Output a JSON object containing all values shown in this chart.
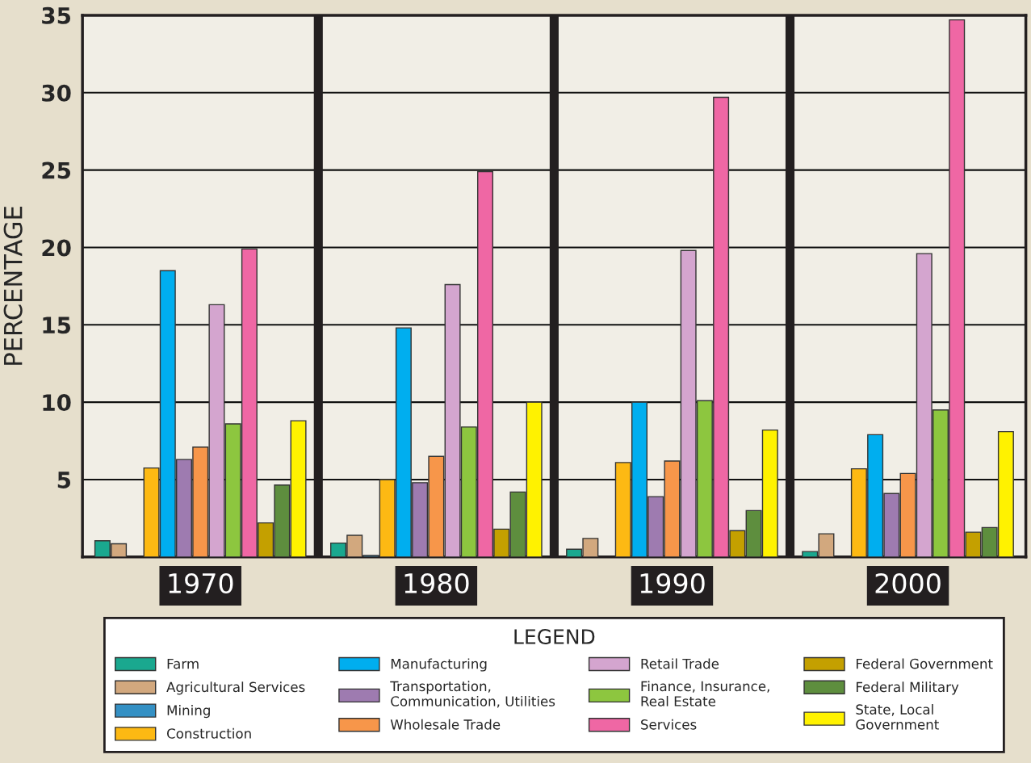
{
  "chart_data": {
    "type": "bar",
    "ylabel": "PERCENTAGE",
    "legend_title": "LEGEND",
    "categories": [
      "1970",
      "1980",
      "1990",
      "2000"
    ],
    "ylim": [
      0,
      35
    ],
    "yticks": [
      5,
      10,
      15,
      20,
      25,
      30,
      35
    ],
    "grid": "y",
    "legend": "bottom",
    "series": [
      {
        "name": "Farm",
        "color": "#1aa88f",
        "values": [
          1.05,
          0.9,
          0.5,
          0.35
        ]
      },
      {
        "name": "Agricultural Services",
        "color": "#d2a87e",
        "values": [
          0.85,
          1.4,
          1.2,
          1.5
        ]
      },
      {
        "name": "Mining",
        "color": "#3490c4",
        "values": [
          null,
          0.1,
          null,
          null
        ]
      },
      {
        "name": "Construction",
        "color": "#fdb913",
        "values": [
          5.75,
          5.0,
          6.1,
          5.7
        ]
      },
      {
        "name": "Manufacturing",
        "color": "#00aeef",
        "values": [
          18.5,
          14.8,
          10.0,
          7.9
        ]
      },
      {
        "name": "Transportation,\nCommunication, Utilities",
        "color": "#9e7bb0",
        "values": [
          6.3,
          4.8,
          3.9,
          4.1
        ]
      },
      {
        "name": "Wholesale Trade",
        "color": "#f7964a",
        "values": [
          7.1,
          6.5,
          6.2,
          5.4
        ]
      },
      {
        "name": "Retail Trade",
        "color": "#d4a5cf",
        "values": [
          16.3,
          17.6,
          19.8,
          19.6
        ]
      },
      {
        "name": "Finance, Insurance,\nReal Estate",
        "color": "#8dc63f",
        "values": [
          8.6,
          8.4,
          10.1,
          9.5
        ]
      },
      {
        "name": "Services",
        "color": "#ef67a4",
        "values": [
          19.9,
          24.9,
          29.7,
          34.7
        ]
      },
      {
        "name": "Federal Government",
        "color": "#c4a000",
        "values": [
          2.2,
          1.8,
          1.7,
          1.6
        ]
      },
      {
        "name": "Federal Military",
        "color": "#5e8e3e",
        "values": [
          4.65,
          4.2,
          3.0,
          1.9
        ]
      },
      {
        "name": "State, Local\nGovernment",
        "color": "#fff200",
        "values": [
          8.8,
          10.0,
          8.2,
          8.1
        ]
      }
    ]
  }
}
